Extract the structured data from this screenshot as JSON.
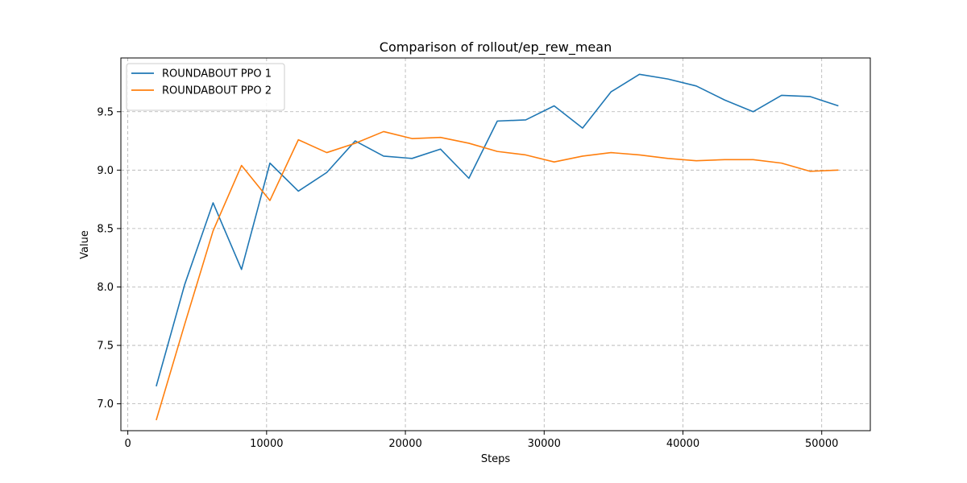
{
  "chart_data": {
    "type": "line",
    "title": "Comparison of rollout/ep_rew_mean",
    "xlabel": "Steps",
    "ylabel": "Value",
    "xlim": [
      -500,
      53500
    ],
    "ylim": [
      6.77,
      9.96
    ],
    "xticks": [
      0,
      10000,
      20000,
      30000,
      40000,
      50000
    ],
    "yticks": [
      7.0,
      7.5,
      8.0,
      8.5,
      9.0,
      9.5
    ],
    "grid": true,
    "legend_position": "top-left",
    "x": [
      2048,
      4096,
      6144,
      8192,
      10240,
      12288,
      14336,
      16384,
      18432,
      20480,
      22528,
      24576,
      26624,
      28672,
      30720,
      32768,
      34816,
      36864,
      38912,
      40960,
      43008,
      45056,
      47104,
      49152,
      51200
    ],
    "series": [
      {
        "name": "ROUNDABOUT PPO 1",
        "color": "#1f77b4",
        "values": [
          7.15,
          8.02,
          8.72,
          8.15,
          9.06,
          8.82,
          8.98,
          9.25,
          9.12,
          9.1,
          9.18,
          8.93,
          9.42,
          9.43,
          9.55,
          9.36,
          9.67,
          9.82,
          9.78,
          9.72,
          9.6,
          9.5,
          9.64,
          9.63,
          9.55
        ]
      },
      {
        "name": "ROUNDABOUT PPO 2",
        "color": "#ff7f0e",
        "values": [
          6.86,
          7.68,
          8.48,
          9.04,
          8.74,
          9.26,
          9.15,
          9.23,
          9.33,
          9.27,
          9.28,
          9.23,
          9.16,
          9.13,
          9.07,
          9.12,
          9.15,
          9.13,
          9.1,
          9.08,
          9.09,
          9.09,
          9.06,
          8.99,
          9.0
        ]
      }
    ]
  }
}
